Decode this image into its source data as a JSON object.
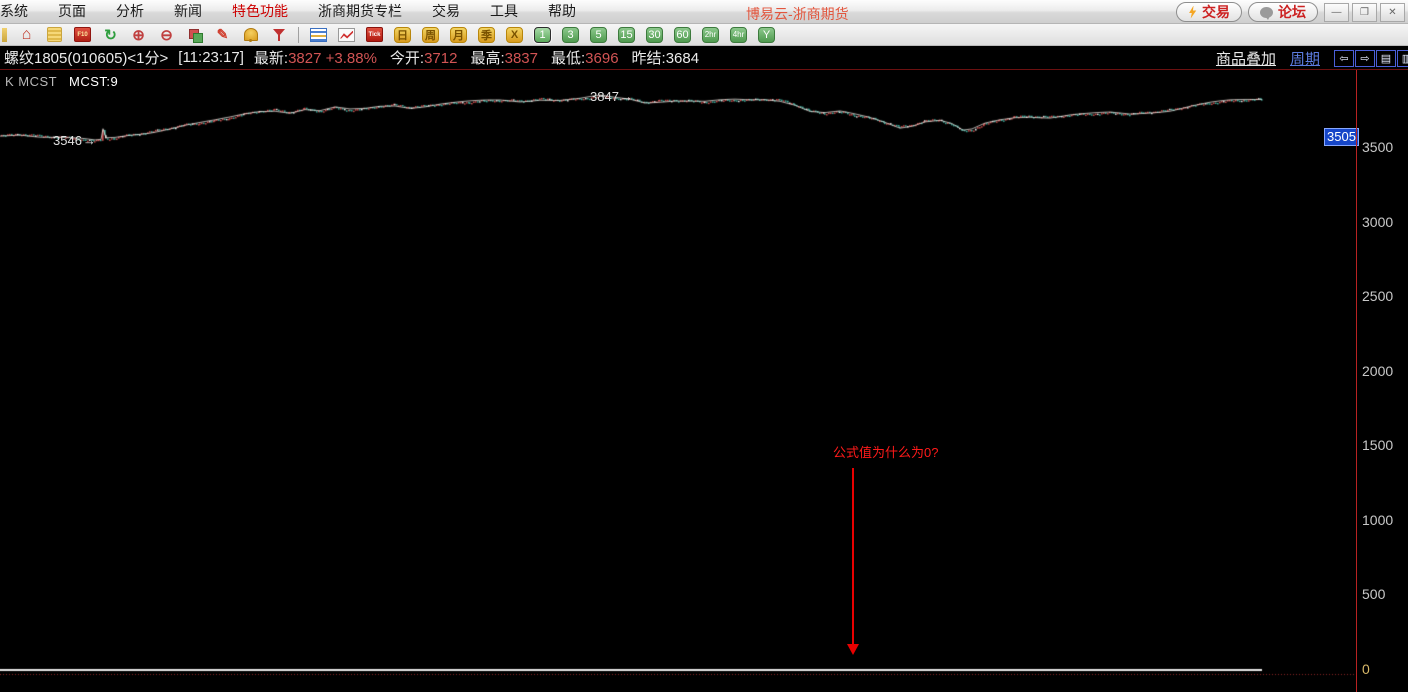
{
  "window": {
    "title": "博易云-浙商期货",
    "buttons": [
      {
        "name": "trade-button",
        "icon": "lightning-icon",
        "label": "交易"
      },
      {
        "name": "forum-button",
        "icon": "forum-bubble-icon",
        "label": "论坛"
      }
    ],
    "controls": [
      {
        "name": "minimize-button",
        "glyph": "—"
      },
      {
        "name": "restore-button",
        "glyph": "❐"
      },
      {
        "name": "close-button",
        "glyph": "✕"
      }
    ]
  },
  "menubar": {
    "items": [
      {
        "label": "系统",
        "accent": false
      },
      {
        "label": "页面",
        "accent": false
      },
      {
        "label": "分析",
        "accent": false
      },
      {
        "label": "新闻",
        "accent": false
      },
      {
        "label": "特色功能",
        "accent": true
      },
      {
        "label": "浙商期货专栏",
        "accent": false
      },
      {
        "label": "交易",
        "accent": false
      },
      {
        "label": "工具",
        "accent": false
      },
      {
        "label": "帮助",
        "accent": false
      }
    ]
  },
  "toolbar": {
    "icons": [
      {
        "name": "clipped-edge-icon",
        "kind": "clip",
        "glyph": ""
      },
      {
        "name": "home-icon",
        "kind": "home",
        "glyph": "⌂"
      },
      {
        "name": "notes-icon",
        "kind": "notes",
        "glyph": ""
      },
      {
        "name": "f10-info-icon",
        "kind": "f10",
        "glyph": "F10"
      },
      {
        "name": "refresh-icon",
        "kind": "refresh",
        "glyph": "↻"
      },
      {
        "name": "zoom-in-icon",
        "kind": "zoom",
        "glyph": "⊕"
      },
      {
        "name": "zoom-out-icon",
        "kind": "zoom",
        "glyph": "⊖"
      },
      {
        "name": "overlay-icon",
        "kind": "overlay",
        "glyph": ""
      },
      {
        "name": "draw-pencil-icon",
        "kind": "draw",
        "glyph": "✎"
      },
      {
        "name": "alarm-bell-icon",
        "kind": "bell",
        "glyph": ""
      },
      {
        "name": "filter-funnel-icon",
        "kind": "filter",
        "glyph": ""
      },
      {
        "name": "toolbar-separator",
        "kind": "sep",
        "glyph": ""
      },
      {
        "name": "quote-table-icon",
        "kind": "table",
        "glyph": ""
      },
      {
        "name": "trend-chart-icon",
        "kind": "chart",
        "glyph": ""
      },
      {
        "name": "tick-chart-icon",
        "kind": "tick",
        "glyph": "Tick"
      }
    ],
    "period_buttons": [
      {
        "label": "日",
        "color": "gold"
      },
      {
        "label": "周",
        "color": "gold"
      },
      {
        "label": "月",
        "color": "gold"
      },
      {
        "label": "季",
        "color": "gold"
      },
      {
        "label": "X",
        "color": "gold"
      },
      {
        "label": "1",
        "color": "green"
      },
      {
        "label": "3",
        "color": "green"
      },
      {
        "label": "5",
        "color": "green"
      },
      {
        "label": "15",
        "color": "green"
      },
      {
        "label": "30",
        "color": "green"
      },
      {
        "label": "60",
        "color": "green"
      },
      {
        "label": "2hr",
        "color": "green"
      },
      {
        "label": "4hr",
        "color": "green"
      },
      {
        "label": "Y",
        "color": "green"
      }
    ],
    "selected_period": "1"
  },
  "infobar": {
    "contract": "螺纹1805(010605)<1分>",
    "time": "[11:23:17]",
    "fields": [
      {
        "label": "最新:",
        "value": "3827 +3.88%",
        "color": "red"
      },
      {
        "label": "今开:",
        "value": "3712",
        "color": "red"
      },
      {
        "label": "最高:",
        "value": "3837",
        "color": "red"
      },
      {
        "label": "最低:",
        "value": "3696",
        "color": "red"
      },
      {
        "label": "昨结:",
        "value": "3684",
        "color": "white"
      }
    ],
    "links": {
      "overlay": "商品叠加",
      "period": "周期"
    },
    "nav_icons": [
      {
        "name": "scroll-left-icon",
        "glyph": "⇦"
      },
      {
        "name": "scroll-right-icon",
        "glyph": "⇨"
      },
      {
        "name": "split-view-icon",
        "glyph": "▤"
      },
      {
        "name": "window-view-icon",
        "glyph": "▥"
      }
    ]
  },
  "chart_data": {
    "type": "candlestick",
    "instrument": "螺纹1805(010605)",
    "period": "1分",
    "indicator_label": "K  MCST",
    "indicator_value_label": "MCST:9",
    "open": 3712,
    "high": 3837,
    "low": 3696,
    "last": 3827,
    "prev_settle": 3684,
    "change_pct": "+3.88%",
    "y_ticks": [
      3500,
      3000,
      2500,
      2000,
      1500,
      1000,
      500,
      0
    ],
    "marked_low": "3546",
    "marked_high": "3847",
    "marker_arrow": "→",
    "axis_badge": "3505",
    "annotation": "公式值为什么为0?",
    "indicator_flat_value": 0,
    "price_path": [
      [
        0,
        3580
      ],
      [
        20,
        3594
      ],
      [
        40,
        3580
      ],
      [
        60,
        3573
      ],
      [
        80,
        3560
      ],
      [
        95,
        3546
      ],
      [
        101,
        3550
      ],
      [
        103,
        3622
      ],
      [
        106,
        3562
      ],
      [
        115,
        3567
      ],
      [
        130,
        3587
      ],
      [
        150,
        3607
      ],
      [
        170,
        3634
      ],
      [
        185,
        3654
      ],
      [
        200,
        3667
      ],
      [
        215,
        3681
      ],
      [
        230,
        3701
      ],
      [
        245,
        3727
      ],
      [
        260,
        3748
      ],
      [
        275,
        3754
      ],
      [
        290,
        3741
      ],
      [
        305,
        3761
      ],
      [
        320,
        3748
      ],
      [
        335,
        3768
      ],
      [
        350,
        3754
      ],
      [
        365,
        3761
      ],
      [
        380,
        3781
      ],
      [
        395,
        3788
      ],
      [
        410,
        3774
      ],
      [
        425,
        3781
      ],
      [
        440,
        3794
      ],
      [
        455,
        3801
      ],
      [
        470,
        3808
      ],
      [
        485,
        3815
      ],
      [
        500,
        3821
      ],
      [
        520,
        3815
      ],
      [
        540,
        3828
      ],
      [
        560,
        3821
      ],
      [
        580,
        3828
      ],
      [
        600,
        3847
      ],
      [
        615,
        3835
      ],
      [
        630,
        3828
      ],
      [
        645,
        3808
      ],
      [
        660,
        3815
      ],
      [
        675,
        3821
      ],
      [
        690,
        3815
      ],
      [
        705,
        3808
      ],
      [
        720,
        3815
      ],
      [
        735,
        3821
      ],
      [
        750,
        3821
      ],
      [
        765,
        3828
      ],
      [
        780,
        3821
      ],
      [
        795,
        3794
      ],
      [
        810,
        3748
      ],
      [
        825,
        3734
      ],
      [
        840,
        3741
      ],
      [
        855,
        3721
      ],
      [
        870,
        3701
      ],
      [
        885,
        3674
      ],
      [
        900,
        3640
      ],
      [
        912,
        3654
      ],
      [
        925,
        3681
      ],
      [
        940,
        3687
      ],
      [
        952,
        3660
      ],
      [
        963,
        3613
      ],
      [
        972,
        3620
      ],
      [
        985,
        3660
      ],
      [
        1000,
        3687
      ],
      [
        1015,
        3707
      ],
      [
        1030,
        3714
      ],
      [
        1050,
        3707
      ],
      [
        1070,
        3721
      ],
      [
        1090,
        3727
      ],
      [
        1110,
        3734
      ],
      [
        1130,
        3727
      ],
      [
        1150,
        3741
      ],
      [
        1170,
        3754
      ],
      [
        1190,
        3781
      ],
      [
        1210,
        3801
      ],
      [
        1230,
        3815
      ],
      [
        1245,
        3821
      ],
      [
        1262,
        3827
      ]
    ]
  }
}
